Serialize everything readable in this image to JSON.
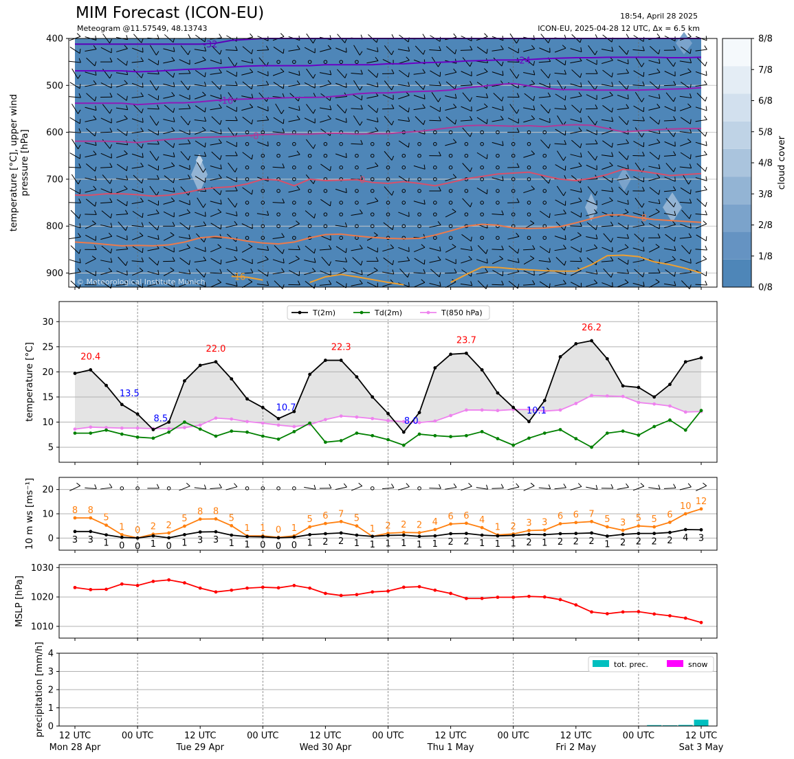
{
  "header": {
    "title": "MIM Forecast (ICON-EU)",
    "subtitle": "Meteogram @11.57549, 48.13743",
    "run_time": "18:54, April 28 2025",
    "model_info": "ICON-EU, 2025-04-28 12 UTC, Δx = 6.5 km"
  },
  "copyright": "© Meteorological Institute Munich",
  "time_axis": {
    "tick_labels": [
      {
        "h": 0,
        "label": "12 UTC",
        "day": "Mon 28 Apr"
      },
      {
        "h": 12,
        "label": "00 UTC",
        "day": ""
      },
      {
        "h": 24,
        "label": "12 UTC",
        "day": "Tue 29 Apr"
      },
      {
        "h": 36,
        "label": "00 UTC",
        "day": ""
      },
      {
        "h": 48,
        "label": "12 UTC",
        "day": "Wed 30 Apr"
      },
      {
        "h": 60,
        "label": "00 UTC",
        "day": ""
      },
      {
        "h": 72,
        "label": "12 UTC",
        "day": "Thu 1 May"
      },
      {
        "h": 84,
        "label": "00 UTC",
        "day": ""
      },
      {
        "h": 96,
        "label": "12 UTC",
        "day": "Fri 2 May"
      },
      {
        "h": 108,
        "label": "00 UTC",
        "day": ""
      },
      {
        "h": 120,
        "label": "12 UTC",
        "day": "Sat 3 May"
      }
    ]
  },
  "chart_data": [
    {
      "id": "upper_air",
      "type": "contour",
      "ylabel": "temperature [°C], upper wind\npressure [hPa]",
      "ylim": [
        930,
        400
      ],
      "yticks": [
        400,
        500,
        600,
        700,
        800,
        900
      ],
      "colorbar": {
        "label": "cloud cover",
        "ticks": [
          "0/8",
          "1/8",
          "2/8",
          "3/8",
          "4/8",
          "5/8",
          "6/8",
          "7/8",
          "8/8"
        ],
        "colors": [
          "#4e86b8",
          "#6593c2",
          "#7ba3cb",
          "#93b4d4",
          "#aac4dd",
          "#bfd3e6",
          "#d2e0ee",
          "#e4edf5",
          "#f5f9fc"
        ]
      },
      "isotherms": [
        {
          "label": "-32",
          "color": "#5b00b8",
          "p": [
            412,
            412,
            412,
            412,
            412,
            412,
            412,
            412,
            412,
            410,
            404,
            402,
            400,
            400,
            400,
            400,
            400,
            400,
            400,
            400,
            400,
            400,
            400,
            400,
            400,
            400,
            400,
            400,
            400,
            400,
            400,
            400,
            400,
            400,
            400,
            400,
            400,
            400,
            400,
            400,
            400
          ]
        },
        {
          "label": "-24",
          "color": "#6a00c4",
          "p": [
            469,
            469,
            469,
            469,
            471,
            470,
            468,
            466,
            465,
            463,
            461,
            459,
            458,
            458,
            458,
            458,
            456,
            456,
            456,
            456,
            454,
            454,
            452,
            451,
            450,
            448,
            447,
            446,
            446,
            445,
            443,
            442,
            441,
            441,
            440,
            440,
            440,
            440,
            441,
            441,
            440
          ]
        },
        {
          "label": "-16",
          "color": "#8e1ab8",
          "p": [
            538,
            538,
            538,
            538,
            541,
            539,
            537,
            537,
            535,
            532,
            530,
            529,
            528,
            527,
            526,
            526,
            525,
            522,
            518,
            516,
            516,
            514,
            513,
            512,
            510,
            505,
            502,
            498,
            496,
            501,
            506,
            509,
            509,
            510,
            510,
            510,
            510,
            509,
            508,
            507,
            505
          ]
        },
        {
          "label": "-8",
          "color": "#b03a98",
          "p": [
            619,
            619,
            619,
            620,
            622,
            618,
            615,
            613,
            611,
            610,
            609,
            607,
            605,
            604,
            604,
            604,
            602,
            602,
            604,
            603,
            603,
            600,
            598,
            594,
            590,
            586,
            585,
            586,
            587,
            586,
            588,
            585,
            584,
            585,
            592,
            599,
            597,
            595,
            593,
            592,
            592
          ]
        },
        {
          "label": "0",
          "color": "#d8506a",
          "p": [
            734,
            734,
            731,
            731,
            733,
            736,
            734,
            729,
            722,
            718,
            716,
            710,
            700,
            702,
            714,
            700,
            703,
            702,
            701,
            707,
            709,
            705,
            709,
            714,
            707,
            699,
            694,
            689,
            687,
            685,
            693,
            700,
            703,
            698,
            690,
            679,
            682,
            687,
            692,
            690,
            688
          ]
        },
        {
          "label": "8",
          "color": "#ee7a4a",
          "p": [
            834,
            836,
            839,
            842,
            841,
            842,
            840,
            834,
            825,
            822,
            826,
            832,
            836,
            838,
            834,
            825,
            818,
            817,
            821,
            824,
            826,
            827,
            826,
            819,
            810,
            800,
            796,
            798,
            804,
            805,
            804,
            801,
            793,
            784,
            776,
            776,
            782,
            786,
            788,
            790,
            792
          ]
        },
        {
          "label": "16",
          "color": "#f0a030",
          "p": [
            null,
            null,
            null,
            null,
            null,
            null,
            null,
            null,
            null,
            null,
            907,
            909,
            915,
            null,
            null,
            920,
            908,
            903,
            908,
            914,
            920,
            925,
            null,
            null,
            920,
            903,
            887,
            888,
            891,
            893,
            895,
            896,
            896,
            882,
            863,
            862,
            865,
            876,
            882,
            890,
            900
          ]
        }
      ]
    },
    {
      "id": "temperature",
      "type": "line",
      "ylabel": "temperature [°C]",
      "ylim": [
        2,
        34
      ],
      "yticks": [
        5,
        10,
        15,
        20,
        25,
        30
      ],
      "legend": [
        "T(2m)",
        "Td(2m)",
        "T(850 hPa)"
      ],
      "legend_location": "upper center",
      "series": [
        {
          "name": "T(2m)",
          "color": "#000000",
          "values": [
            19.7,
            20.4,
            17.3,
            13.5,
            11.6,
            8.5,
            10,
            18.2,
            21.3,
            22,
            18.6,
            14.6,
            12.9,
            10.7,
            12.1,
            19.5,
            22.3,
            22.3,
            19,
            15,
            11.7,
            8,
            11.9,
            20.8,
            23.5,
            23.7,
            20.4,
            15.8,
            12.9,
            10.1,
            14.3,
            23,
            25.6,
            26.2,
            22.6,
            17.2,
            16.9,
            15,
            17.5,
            22,
            22.8
          ]
        },
        {
          "name": "Td(2m)",
          "color": "#008000",
          "values": [
            7.8,
            7.8,
            8.4,
            7.6,
            7,
            6.8,
            8,
            10,
            8.6,
            7.2,
            8.2,
            8,
            7.2,
            6.6,
            8.1,
            9.8,
            6,
            6.3,
            7.8,
            7.3,
            6.5,
            5.4,
            7.6,
            7.3,
            7.1,
            7.3,
            8.1,
            6.7,
            5.4,
            6.8,
            7.8,
            8.5,
            6.7,
            5,
            7.8,
            8.2,
            7.4,
            9.1,
            10.4,
            8.4,
            12.3
          ]
        },
        {
          "name": "T(850 hPa)",
          "color": "#ee82ee",
          "values": [
            8.6,
            9,
            8.9,
            8.8,
            8.8,
            8.7,
            8.7,
            8.9,
            9.4,
            10.8,
            10.6,
            10.1,
            9.8,
            9.4,
            9.1,
            9.5,
            10.5,
            11.2,
            11,
            10.7,
            10.3,
            10.1,
            9.9,
            10.2,
            11.3,
            12.4,
            12.4,
            12.3,
            12.5,
            12.5,
            12.2,
            12.4,
            13.7,
            15.3,
            15.2,
            15.1,
            13.9,
            13.6,
            13.2,
            12,
            12.1
          ]
        }
      ],
      "annotations": [
        {
          "i": 1,
          "text": "20.4",
          "kind": "max"
        },
        {
          "i": 3,
          "text": "13.5",
          "kind": "min"
        },
        {
          "i": 5,
          "text": "8.5",
          "kind": "min"
        },
        {
          "i": 9,
          "text": "22.0",
          "kind": "max"
        },
        {
          "i": 13,
          "text": "10.7",
          "kind": "min"
        },
        {
          "i": 17,
          "text": "22.3",
          "kind": "max"
        },
        {
          "i": 21,
          "text": "8.0",
          "kind": "min"
        },
        {
          "i": 25,
          "text": "23.7",
          "kind": "max"
        },
        {
          "i": 29,
          "text": "10.1",
          "kind": "min"
        },
        {
          "i": 33,
          "text": "26.2",
          "kind": "max"
        }
      ]
    },
    {
      "id": "wind",
      "type": "line",
      "ylabel": "10 m ws [ms⁻¹]",
      "ylim": [
        -5,
        25
      ],
      "yticks": [
        0,
        10,
        20
      ],
      "series": [
        {
          "name": "gusts",
          "color": "#ff7f0e",
          "values": [
            8.3,
            8.3,
            5.3,
            1.4,
            0.1,
            1.6,
            2.1,
            4.9,
            7.8,
            7.9,
            5.1,
            0.9,
            0.9,
            0.3,
            0.9,
            4.6,
            6,
            6.8,
            5,
            0.7,
            2,
            2.3,
            2.2,
            3.5,
            5.8,
            6.1,
            4.3,
            1.3,
            1.7,
            3.1,
            3.3,
            5.9,
            6.4,
            6.8,
            4.6,
            3.2,
            5,
            4.6,
            6.5,
            10,
            12
          ],
          "labels": [
            "8",
            "8",
            "5",
            "1",
            "0",
            "2",
            "2",
            "5",
            "8",
            "8",
            "5",
            "1",
            "1",
            "0",
            "1",
            "5",
            "6",
            "7",
            "5",
            "1",
            "2",
            "2",
            "2",
            "4",
            "6",
            "6",
            "4",
            "1",
            "2",
            "3",
            "3",
            "6",
            "6",
            "7",
            "5",
            "3",
            "5",
            "5",
            "6",
            "10",
            "12"
          ]
        },
        {
          "name": "speed",
          "color": "#000000",
          "values": [
            2.7,
            2.7,
            1.3,
            0.3,
            0,
            0.9,
            0.1,
            1.4,
            2.5,
            2.6,
            1.2,
            0.6,
            0.5,
            0.1,
            0.4,
            1.4,
            1.8,
            2.1,
            1.2,
            0.7,
            1.1,
            1.2,
            0.7,
            0.9,
            1.8,
            1.9,
            1.2,
            0.9,
            1.1,
            1.5,
            1.4,
            1.8,
            1.9,
            2.1,
            0.8,
            1.5,
            1.9,
            1.9,
            2.3,
            3.5,
            3.4
          ],
          "labels": [
            "3",
            "3",
            "1",
            "0",
            "0",
            "1",
            "0",
            "1",
            "3",
            "3",
            "1",
            "1",
            "0",
            "0",
            "0",
            "1",
            "2",
            "2",
            "1",
            "1",
            "1",
            "1",
            "1",
            "1",
            "2",
            "2",
            "1",
            "1",
            "1",
            "2",
            "1",
            "2",
            "2",
            "2",
            "1",
            "2",
            "2",
            "2",
            "2",
            "4",
            "3"
          ]
        }
      ]
    },
    {
      "id": "mslp",
      "type": "line",
      "ylabel": "MSLP [hPa]",
      "ylim": [
        1006,
        1031
      ],
      "yticks": [
        1010,
        1020,
        1030
      ],
      "series": [
        {
          "name": "MSLP",
          "color": "#ff0000",
          "values": [
            1023.2,
            1022.5,
            1022.6,
            1024.4,
            1023.9,
            1025.3,
            1025.8,
            1024.8,
            1023,
            1021.7,
            1022.3,
            1023,
            1023.3,
            1023.1,
            1023.9,
            1023,
            1021.2,
            1020.5,
            1020.8,
            1021.7,
            1022,
            1023.3,
            1023.5,
            1022.3,
            1021.2,
            1019.5,
            1019.5,
            1019.9,
            1019.9,
            1020.2,
            1020,
            1019.1,
            1017.3,
            1014.9,
            1014.3,
            1014.9,
            1015,
            1014.2,
            1013.6,
            1012.8,
            1011.3
          ]
        }
      ]
    },
    {
      "id": "precipitation",
      "type": "bar",
      "ylabel": "precipitation [mm/h]",
      "ylim": [
        0,
        4
      ],
      "yticks": [
        0,
        1,
        2,
        3,
        4
      ],
      "legend": [
        "tot. prec.",
        "snow"
      ],
      "legend_location": "upper right",
      "series": [
        {
          "name": "tot. prec.",
          "color": "#00bfbf",
          "bars": [
            {
              "i": 37,
              "v": 0.05
            },
            {
              "i": 38,
              "v": 0.04
            },
            {
              "i": 39,
              "v": 0.06
            },
            {
              "i": 40,
              "v": 0.35
            }
          ]
        },
        {
          "name": "snow",
          "color": "#ff00ff",
          "bars": []
        }
      ]
    }
  ]
}
